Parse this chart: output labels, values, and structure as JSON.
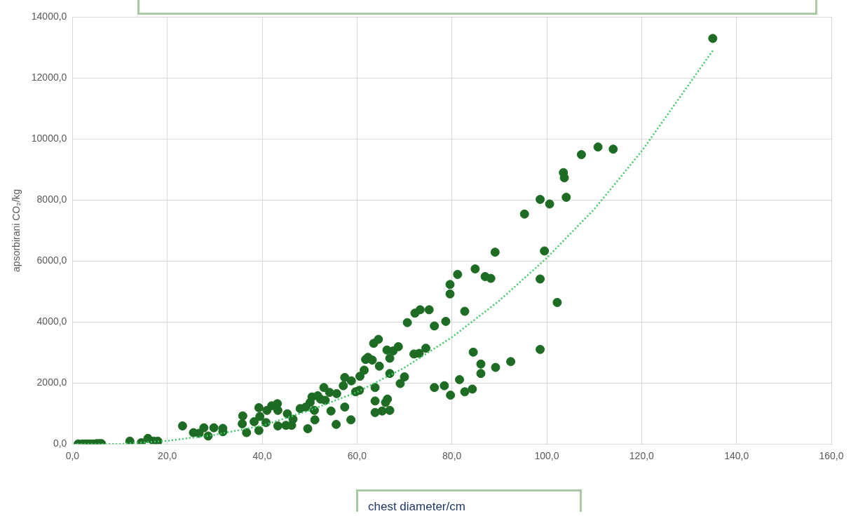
{
  "chart_data": {
    "type": "scatter",
    "xlabel": "chest diameter/cm",
    "ylabel": "apsorbirani CO₂/kg",
    "xlim": [
      0,
      160
    ],
    "ylim": [
      0,
      14000
    ],
    "xticks": [
      {
        "value": 0,
        "label": "0,0"
      },
      {
        "value": 20,
        "label": "20,0"
      },
      {
        "value": 40,
        "label": "40,0"
      },
      {
        "value": 60,
        "label": "60,0"
      },
      {
        "value": 80,
        "label": "80,0"
      },
      {
        "value": 100,
        "label": "100,0"
      },
      {
        "value": 120,
        "label": "120,0"
      },
      {
        "value": 140,
        "label": "140,0"
      },
      {
        "value": 160,
        "label": "160,0"
      }
    ],
    "yticks": [
      {
        "value": 0,
        "label": "0,0"
      },
      {
        "value": 2000,
        "label": "2000,0"
      },
      {
        "value": 4000,
        "label": "4000,0"
      },
      {
        "value": 6000,
        "label": "6000,0"
      },
      {
        "value": 8000,
        "label": "8000,0"
      },
      {
        "value": 10000,
        "label": "10000,0"
      },
      {
        "value": 12000,
        "label": "12000,0"
      },
      {
        "value": 14000,
        "label": "14000,0"
      }
    ],
    "grid": true,
    "legend": false,
    "series": [
      {
        "color": "#1e6b23",
        "marker": "circle",
        "x": [
          1.2,
          2.1,
          2.7,
          3.3,
          3.9,
          4.5,
          5.1,
          5.7,
          6.1,
          12.1,
          14.5,
          15.9,
          17.1,
          18,
          23.2,
          25.5,
          26.7,
          27.7,
          28.6,
          29.8,
          31.7,
          31.7,
          35.9,
          35.8,
          36.7,
          38.3,
          39.3,
          39.5,
          39.3,
          40.8,
          41,
          42,
          43.2,
          43.3,
          43.3,
          45,
          45.3,
          46.2,
          46.5,
          48,
          49.2,
          49.6,
          50.1,
          50.5,
          51,
          51.1,
          51.7,
          52.3,
          53,
          53.3,
          54.2,
          54.5,
          55.6,
          55.7,
          57.1,
          57.4,
          57.4,
          58.7,
          58.8,
          59.7,
          60.5,
          60.6,
          61.5,
          61.8,
          62.3,
          63.2,
          63.5,
          63.8,
          63.8,
          63.8,
          64.5,
          64.7,
          65.3,
          66,
          66.4,
          66.9,
          66.3,
          66.9,
          66.9,
          67.6,
          68.7,
          69.1,
          70,
          70.6,
          72,
          72.2,
          73.1,
          73.3,
          74.5,
          75.2,
          76.3,
          76.3,
          78.4,
          78.7,
          79.6,
          79.6,
          79.7,
          81.2,
          81.6,
          82.7,
          82.7,
          84.3,
          84.5,
          84.9,
          86.1,
          86.1,
          87,
          88.2,
          89.1,
          89.2,
          92.4,
          95.3,
          98.6,
          98.6,
          98.6,
          99.5,
          100.6,
          102.2,
          103.5,
          103.7,
          104.1,
          107.3,
          110.8,
          114,
          135
        ],
        "values": [
          0,
          0,
          0,
          0,
          0,
          0,
          10,
          10,
          10,
          90,
          40,
          180,
          90,
          90,
          590,
          370,
          350,
          530,
          260,
          530,
          400,
          510,
          920,
          660,
          370,
          730,
          1190,
          900,
          440,
          700,
          1100,
          1250,
          1320,
          1100,
          590,
          610,
          990,
          610,
          810,
          1160,
          1210,
          500,
          1360,
          1540,
          1100,
          790,
          1580,
          1470,
          1850,
          1430,
          1690,
          1080,
          640,
          1650,
          1910,
          2180,
          1210,
          790,
          2070,
          1710,
          1760,
          2220,
          2420,
          2770,
          2840,
          2750,
          3300,
          1030,
          1410,
          1850,
          3430,
          2550,
          1080,
          1360,
          1470,
          1100,
          3080,
          2810,
          2310,
          3050,
          3190,
          1980,
          2200,
          3980,
          2950,
          4290,
          2970,
          4400,
          3140,
          4400,
          1850,
          3870,
          1910,
          4020,
          4920,
          5230,
          1600,
          5560,
          2110,
          4350,
          1710,
          1800,
          3010,
          5740,
          2310,
          2620,
          5490,
          5430,
          6290,
          2510,
          2700,
          7540,
          3100,
          5410,
          8020,
          6330,
          7870,
          4640,
          8900,
          8730,
          8090,
          9490,
          9740,
          9670,
          13300
        ]
      },
      {
        "type": "line",
        "color": "#3cc864",
        "marker": "none",
        "line_style": "dotted",
        "x": [
          1,
          10,
          20,
          30,
          40,
          50,
          60,
          70,
          80,
          90,
          100,
          110,
          120,
          135
        ],
        "values": [
          0,
          0,
          100,
          300,
          600,
          1100,
          1700,
          2500,
          3500,
          4700,
          6100,
          7700,
          9600,
          12900
        ]
      }
    ]
  }
}
